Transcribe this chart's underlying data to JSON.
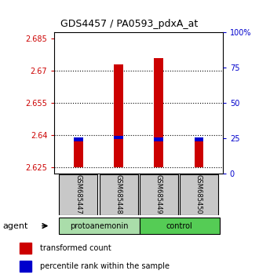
{
  "title": "GDS4457 / PA0593_pdxA_at",
  "samples": [
    "GSM685447",
    "GSM685448",
    "GSM685449",
    "GSM685450"
  ],
  "groups": [
    "protoanemonin",
    "protoanemonin",
    "control",
    "control"
  ],
  "bar_bottom": 2.625,
  "red_values": [
    2.638,
    2.673,
    2.676,
    2.637
  ],
  "blue_values": [
    2.638,
    2.639,
    2.638,
    2.638
  ],
  "ylim_left": [
    2.622,
    2.688
  ],
  "yticks_left": [
    2.625,
    2.64,
    2.655,
    2.67,
    2.685
  ],
  "yticks_right": [
    0,
    25,
    50,
    75,
    100
  ],
  "ylabel_left_color": "#cc0000",
  "ylabel_right_color": "#0000cc",
  "bar_width": 0.22,
  "blue_bar_width": 0.22,
  "blue_bar_height": 0.0015,
  "legend_red": "transformed count",
  "legend_blue": "percentile rank within the sample",
  "bg_color": "#ffffff",
  "label_bg": "#c8c8c8",
  "protoanemonin_color": "#aaddaa",
  "control_color": "#55cc55",
  "grid_linestyle": "dotted",
  "grid_color": "black",
  "grid_linewidth": 0.8,
  "title_fontsize": 9,
  "tick_fontsize": 7,
  "sample_fontsize": 6,
  "group_fontsize": 7,
  "legend_fontsize": 7,
  "agent_fontsize": 8
}
